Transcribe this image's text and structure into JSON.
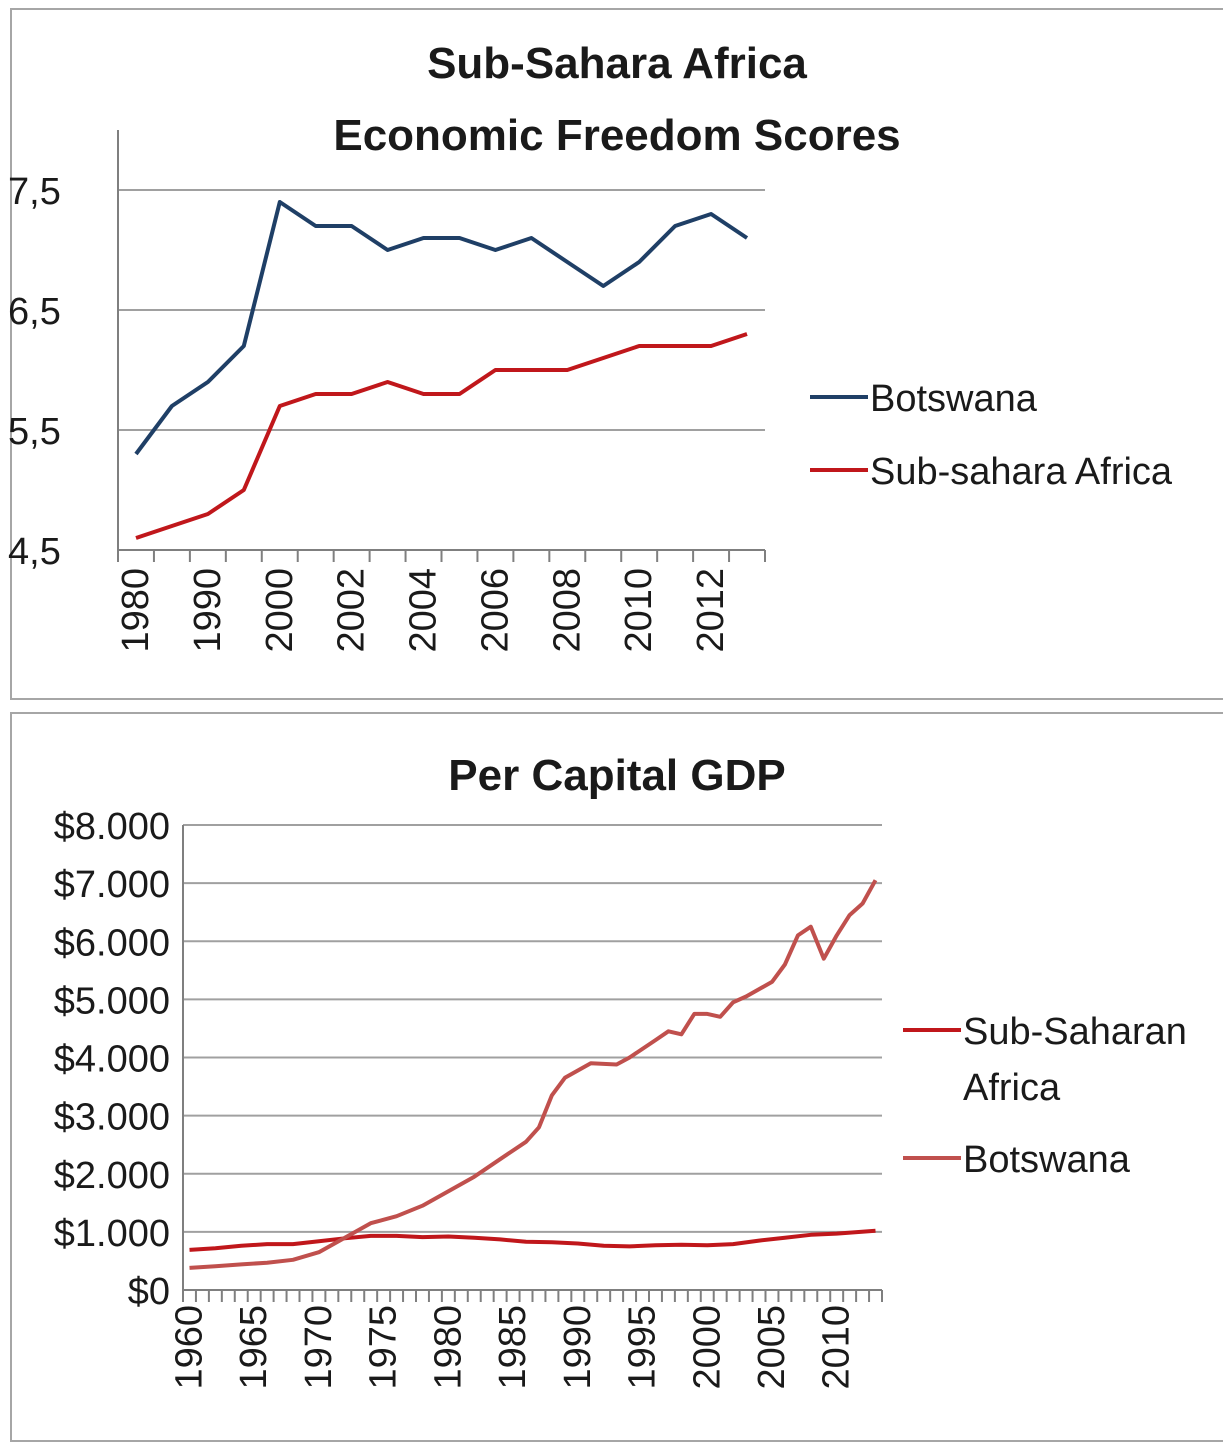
{
  "chart_data": [
    {
      "type": "line",
      "title": "Sub-Sahara Africa Economic Freedom Scores",
      "title_lines": [
        "Sub-Sahara Africa",
        "Economic Freedom Scores"
      ],
      "xlabel": "",
      "ylabel": "",
      "ylim": [
        4.5,
        7.5
      ],
      "y_ticks": [
        "4,5",
        "5,5",
        "6,5",
        "7,5"
      ],
      "y_tick_values": [
        4.5,
        5.5,
        6.5,
        7.5
      ],
      "grid": true,
      "legend_position": "right",
      "x": [
        1980,
        1985,
        1990,
        1995,
        2000,
        2001,
        2002,
        2003,
        2004,
        2005,
        2006,
        2007,
        2008,
        2009,
        2010,
        2011,
        2012,
        2013
      ],
      "x_tick_labels": [
        "1980",
        "1990",
        "2000",
        "2002",
        "2004",
        "2006",
        "2008",
        "2010",
        "2012"
      ],
      "series": [
        {
          "name": "Botswana",
          "color": "#1f3f66",
          "values": [
            5.3,
            5.7,
            5.9,
            6.2,
            7.4,
            7.2,
            7.2,
            7.0,
            7.1,
            7.1,
            7.0,
            7.1,
            6.9,
            6.7,
            6.9,
            7.2,
            7.3,
            7.1
          ]
        },
        {
          "name": "Sub-sahara Africa",
          "color": "#c0171b",
          "values": [
            4.6,
            4.7,
            4.8,
            5.0,
            5.7,
            5.8,
            5.8,
            5.9,
            5.8,
            5.8,
            6.0,
            6.0,
            6.0,
            6.1,
            6.2,
            6.2,
            6.2,
            6.3
          ]
        }
      ]
    },
    {
      "type": "line",
      "title": "Per Capital GDP",
      "title_lines": [
        "Per Capital GDP"
      ],
      "xlabel": "",
      "ylabel": "",
      "ylim": [
        0,
        8000
      ],
      "y_ticks": [
        "$0",
        "$1.000",
        "$2.000",
        "$3.000",
        "$4.000",
        "$5.000",
        "$6.000",
        "$7.000",
        "$8.000"
      ],
      "y_tick_values": [
        0,
        1000,
        2000,
        3000,
        4000,
        5000,
        6000,
        7000,
        8000
      ],
      "grid": true,
      "legend_position": "right",
      "xlim": [
        1960,
        2013
      ],
      "x_tick_labels": [
        "1960",
        "1965",
        "1970",
        "1975",
        "1980",
        "1985",
        "1990",
        "1995",
        "2000",
        "2005",
        "2010"
      ],
      "x_tick_values": [
        1960,
        1965,
        1970,
        1975,
        1980,
        1985,
        1990,
        1995,
        2000,
        2005,
        2010
      ],
      "series": [
        {
          "name": "Sub-Saharan Africa",
          "legend_lines": [
            "Sub-Saharan",
            "Africa"
          ],
          "color": "#c0171b",
          "x": [
            1960,
            1962,
            1964,
            1966,
            1968,
            1970,
            1972,
            1974,
            1976,
            1978,
            1980,
            1982,
            1984,
            1986,
            1988,
            1990,
            1992,
            1994,
            1996,
            1998,
            2000,
            2002,
            2004,
            2006,
            2008,
            2010,
            2013
          ],
          "values": [
            690,
            720,
            760,
            790,
            790,
            840,
            890,
            930,
            930,
            910,
            920,
            900,
            870,
            830,
            820,
            800,
            760,
            750,
            770,
            780,
            770,
            790,
            850,
            900,
            950,
            970,
            1020
          ]
        },
        {
          "name": "Botswana",
          "legend_lines": [
            "Botswana"
          ],
          "color": "#c0504d",
          "x": [
            1960,
            1962,
            1964,
            1966,
            1968,
            1970,
            1972,
            1974,
            1976,
            1978,
            1980,
            1982,
            1984,
            1986,
            1987,
            1988,
            1989,
            1991,
            1993,
            1994,
            1996,
            1997,
            1998,
            1999,
            2000,
            2001,
            2002,
            2003,
            2005,
            2006,
            2007,
            2008,
            2009,
            2010,
            2011,
            2012,
            2013
          ],
          "values": [
            380,
            410,
            440,
            470,
            520,
            650,
            900,
            1150,
            1270,
            1450,
            1700,
            1950,
            2250,
            2550,
            2800,
            3350,
            3650,
            3900,
            3880,
            4000,
            4300,
            4450,
            4400,
            4750,
            4750,
            4700,
            4950,
            5050,
            5300,
            5600,
            6100,
            6250,
            5700,
            6100,
            6450,
            6650,
            7050
          ]
        }
      ]
    }
  ]
}
